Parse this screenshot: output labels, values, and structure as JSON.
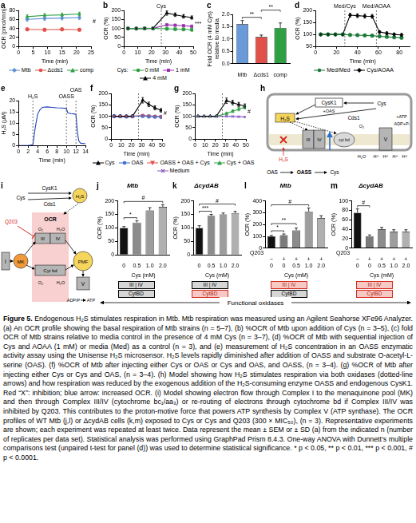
{
  "chart_data": [
    {
      "panel": "a",
      "type": "line",
      "xlabel": "Time (min)",
      "ylabel": "OCR (pmol/min)",
      "grid": false,
      "xlim": [
        0,
        25
      ],
      "xticks": [
        0,
        5,
        10,
        15,
        20,
        25
      ],
      "ylim": [
        0,
        80
      ],
      "yticks": [
        0,
        20,
        40,
        60,
        80
      ],
      "x": [
        3,
        9,
        15,
        21
      ],
      "legend": "bottom",
      "note": "#",
      "series": [
        {
          "name": "Mtb",
          "color": "#5b8fd6",
          "marker": "diamond",
          "values": [
            60,
            62,
            63,
            64
          ],
          "error": [
            4,
            4,
            4,
            4
          ]
        },
        {
          "name": "Δcds1",
          "color": "#e0514a",
          "marker": "circle",
          "values": [
            38,
            37,
            38,
            37
          ],
          "error": [
            3,
            3,
            3,
            3
          ]
        },
        {
          "name": "comp",
          "color": "#2ea043",
          "marker": "triangle",
          "values": [
            66,
            69,
            70,
            72
          ],
          "error": [
            4,
            4,
            4,
            4
          ]
        }
      ]
    },
    {
      "panel": "b",
      "type": "line",
      "xlabel": "Time (min)",
      "ylabel": "OCR (%)",
      "grid": false,
      "xlim": [
        0,
        50
      ],
      "xticks": [
        0,
        10,
        20,
        30,
        40,
        50
      ],
      "ylim": [
        0,
        200
      ],
      "yticks": [
        0,
        50,
        100,
        150,
        200
      ],
      "x": [
        3,
        9,
        15,
        21,
        31,
        37,
        43,
        49
      ],
      "legend": "bottom",
      "legend_title": "Cys:",
      "note": "***",
      "events": [
        {
          "label": "Cys",
          "x": 27
        }
      ],
      "series": [
        {
          "name": "0 mM",
          "color": "#2ea043",
          "marker": "circle",
          "values": [
            100,
            99,
            100,
            100,
            98,
            96,
            95,
            93
          ],
          "error": [
            3,
            3,
            3,
            3,
            3,
            3,
            3,
            3
          ]
        },
        {
          "name": "1 mM",
          "color": "#9b30b0",
          "marker": "square",
          "values": [
            100,
            100,
            101,
            100,
            120,
            118,
            115,
            112
          ],
          "error": [
            3,
            3,
            3,
            3,
            5,
            5,
            5,
            5
          ]
        },
        {
          "name": "4 mM",
          "color": "#000000",
          "marker": "triangle",
          "values": [
            100,
            100,
            100,
            101,
            185,
            176,
            167,
            160
          ],
          "error": [
            3,
            3,
            3,
            3,
            12,
            10,
            10,
            9
          ]
        }
      ]
    },
    {
      "panel": "c",
      "type": "bar",
      "ylabel": [
        "Fold OCR (4 mM Cys)",
        "relative to media"
      ],
      "grid": false,
      "categories": [
        "Mtb",
        "Δcds1",
        "comp"
      ],
      "values": [
        1.6,
        1.08,
        1.45
      ],
      "error": [
        0.15,
        0.08,
        0.2
      ],
      "colors": [
        "#6a9bd8",
        "#e0514a",
        "#2ea043"
      ],
      "ylim": [
        0,
        2
      ],
      "yticks": [
        {
          "value": 0,
          "label": "0.0"
        },
        0.5,
        {
          "value": 1,
          "label": "1.0"
        },
        1.5,
        {
          "value": 2,
          "label": "2.0"
        }
      ],
      "significance": [
        {
          "pair": [
            0,
            1
          ],
          "label": "**"
        },
        {
          "pair": [
            1,
            2
          ],
          "label": "**"
        }
      ]
    },
    {
      "panel": "d",
      "type": "line",
      "xlabel": "Time (min)",
      "ylabel": "OCR (%)",
      "grid": false,
      "xlim": [
        0,
        90
      ],
      "xticks": [
        0,
        20,
        40,
        60,
        80
      ],
      "ylim": [
        50,
        200
      ],
      "yticks": [
        50,
        100,
        150,
        200
      ],
      "x": [
        5,
        12,
        19,
        26,
        33,
        40,
        47,
        54,
        61,
        68,
        75,
        82
      ],
      "legend": "bottom",
      "events": [
        {
          "label": "Med/Cys",
          "x": 28
        },
        {
          "label": "Med/AOAA",
          "x": 58
        }
      ],
      "series": [
        {
          "name": "Med/Med",
          "color": "#1e7b3a",
          "marker": "circle",
          "values": [
            100,
            100,
            100,
            100,
            98,
            97,
            96,
            95,
            92,
            90,
            88,
            86
          ],
          "error": [
            3,
            3,
            3,
            3,
            3,
            3,
            3,
            3,
            3,
            3,
            3,
            3
          ]
        },
        {
          "name": "Cys/AOAA",
          "color": "#000000",
          "marker": "diamond",
          "values": [
            100,
            100,
            100,
            100,
            180,
            178,
            176,
            175,
            110,
            105,
            100,
            98
          ],
          "error": [
            3,
            3,
            3,
            3,
            8,
            8,
            8,
            8,
            6,
            6,
            6,
            6
          ]
        }
      ]
    },
    {
      "panel": "e",
      "type": "line",
      "xlabel": "Time (min)",
      "ylabel": "H₂S (μM)",
      "grid": false,
      "xlim": [
        0,
        14
      ],
      "xticks": [
        0,
        2,
        4,
        6,
        8,
        10,
        12,
        14
      ],
      "ylim": [
        0,
        20
      ],
      "yticks": [
        0,
        5,
        10,
        15,
        20
      ],
      "x": [
        0,
        1,
        2,
        3,
        3.5,
        4,
        4.5,
        5,
        6,
        7,
        8,
        9,
        10,
        10.3,
        11,
        11.8,
        12,
        12.3,
        12.6,
        13,
        14
      ],
      "events": [
        {
          "label": "H₂S",
          "x": 3
        },
        {
          "label": "OASS",
          "x": 10
        },
        {
          "label": "OAS",
          "x": 12
        }
      ],
      "series": [
        {
          "name": "H₂S",
          "color": "#1f3fbf",
          "marker": "none",
          "values": [
            0,
            0,
            0,
            0.3,
            8,
            14,
            16,
            17,
            17.2,
            17,
            16.8,
            16.7,
            16.5,
            14.5,
            14.2,
            14,
            13.8,
            6,
            2,
            1,
            0.8
          ]
        }
      ]
    },
    {
      "panel": "f",
      "type": "line",
      "xlabel": "Time (min)",
      "ylabel": "OCR (%)",
      "grid": false,
      "xlim": [
        0,
        50
      ],
      "xticks": [
        0,
        10,
        20,
        30,
        40,
        50
      ],
      "ylim": [
        0,
        200
      ],
      "yticks": [
        0,
        50,
        100,
        150,
        200
      ],
      "x": [
        3,
        9,
        15,
        21,
        31,
        37,
        43,
        49
      ],
      "legend": "bottom",
      "note": "#",
      "events": [
        {
          "x": 27
        }
      ],
      "series": [
        {
          "name": "Cys",
          "color": "#000000",
          "marker": "triangle",
          "values": [
            100,
            100,
            100,
            100,
            170,
            152,
            137,
            126
          ],
          "error": [
            3,
            3,
            3,
            3,
            12,
            10,
            9,
            8
          ]
        },
        {
          "name": "OAS",
          "color": "#3b6fd6",
          "marker": "circle",
          "values": [
            100,
            100,
            99,
            100,
            101,
            99,
            98,
            97
          ],
          "error": [
            3,
            3,
            3,
            3,
            4,
            4,
            4,
            4
          ]
        },
        {
          "name": "OASS + OAS + Cys",
          "color": "#e0514a",
          "marker": "triangle-down",
          "values": [
            100,
            100,
            100,
            100,
            104,
            102,
            100,
            99
          ],
          "error": [
            3,
            3,
            3,
            3,
            4,
            4,
            4,
            4
          ]
        }
      ]
    },
    {
      "panel": "g",
      "type": "line",
      "xlabel": "Time (min)",
      "ylabel": "OCR (%)",
      "grid": false,
      "xlim": [
        0,
        50
      ],
      "xticks": [
        0,
        10,
        20,
        30,
        40,
        50
      ],
      "ylim": [
        0,
        200
      ],
      "yticks": [
        0,
        50,
        100,
        150,
        200
      ],
      "x": [
        3,
        9,
        15,
        21,
        31,
        37,
        43,
        49
      ],
      "legend": "bottom",
      "note": "#",
      "events": [
        {
          "x": 27
        }
      ],
      "series": [
        {
          "name": "Cys",
          "color": "#000000",
          "marker": "triangle",
          "values": [
            100,
            100,
            100,
            100,
            168,
            160,
            151,
            145
          ],
          "error": [
            3,
            3,
            3,
            3,
            12,
            10,
            10,
            9
          ]
        },
        {
          "name": "Cys + OAS",
          "color": "#2ea043",
          "marker": "triangle",
          "values": [
            100,
            100,
            100,
            100,
            112,
            122,
            131,
            140
          ],
          "error": [
            3,
            3,
            3,
            3,
            5,
            6,
            7,
            8
          ]
        },
        {
          "name": "Medium",
          "color": "#8a5cc2",
          "marker": "cross",
          "values": [
            100,
            100,
            100,
            100,
            100,
            99,
            98,
            97
          ],
          "error": [
            3,
            3,
            3,
            3,
            3,
            3,
            3,
            3
          ]
        }
      ]
    },
    {
      "panel": "j",
      "type": "bar",
      "title": "Mtb",
      "xlabel": "Cys (mM)",
      "ylabel": "OCR (%)",
      "grid": false,
      "categories": [
        "0",
        "0.5",
        "1.0",
        "2.0"
      ],
      "values": [
        100,
        120,
        165,
        178
      ],
      "error": [
        5,
        6,
        10,
        8
      ],
      "colors": [
        "#111111",
        "#8c8c8c",
        "#9d9d9d",
        "#b0b0b0"
      ],
      "ylim": [
        0,
        200
      ],
      "yticks": [
        0,
        50,
        100,
        150,
        200
      ],
      "significance": [
        {
          "pair": [
            0,
            1
          ],
          "label": "*"
        },
        {
          "pair": [
            0,
            3
          ],
          "label": "#"
        }
      ],
      "oxidases": [
        {
          "label": "III | IV",
          "functional": true
        },
        {
          "label": "CytBD",
          "functional": true
        }
      ]
    },
    {
      "panel": "k",
      "type": "bar",
      "title": "ΔcydAB",
      "xlabel": "Cys (mM)",
      "ylabel": "OCR (%)",
      "grid": false,
      "categories": [
        "0",
        "0.5",
        "1.0",
        "2.0"
      ],
      "values": [
        100,
        145,
        150,
        155
      ],
      "error": [
        8,
        5,
        5,
        6
      ],
      "colors": [
        "#111111",
        "#8c8c8c",
        "#9d9d9d",
        "#b0b0b0"
      ],
      "ylim": [
        0,
        200
      ],
      "yticks": [
        0,
        50,
        100,
        150,
        200
      ],
      "significance": [
        {
          "pair": [
            0,
            1
          ],
          "label": "***"
        },
        {
          "pair": [
            0,
            3
          ],
          "label": "#"
        }
      ],
      "oxidases": [
        {
          "label": "III | IV",
          "functional": true
        },
        {
          "label": "CytBD",
          "functional": false
        }
      ]
    },
    {
      "panel": "l",
      "type": "bar",
      "title": "Mtb",
      "xlabel": "Cys (mM)",
      "ylabel": "OCR (%)",
      "grid": false,
      "q203": {
        "label": "Q203",
        "values": [
          "−",
          "+",
          "+",
          "+",
          "+"
        ]
      },
      "categories": [
        "0",
        "0",
        "0.5",
        "1.0",
        "2.0"
      ],
      "values": [
        100,
        110,
        150,
        310,
        255
      ],
      "error": [
        8,
        10,
        20,
        30,
        20
      ],
      "colors": [
        "#111111",
        "#7a7a7a",
        "#8c8c8c",
        "#9d9d9d",
        "#b0b0b0"
      ],
      "ylim": [
        0,
        400
      ],
      "yticks": [
        0,
        100,
        200,
        300,
        400
      ],
      "significance": [
        {
          "pair": [
            0,
            1
          ],
          "label": "*"
        },
        {
          "pair": [
            0,
            2
          ],
          "label": "**"
        },
        {
          "pair": [
            0,
            3
          ],
          "label": "#"
        }
      ],
      "oxidases": [
        {
          "label": "III | IV",
          "functional": false
        },
        {
          "label": "CytBD",
          "functional": true
        }
      ]
    },
    {
      "panel": "m",
      "type": "bar",
      "title": "ΔcydAB",
      "xlabel": "Cys (mM)",
      "ylabel": "OCR (%)",
      "grid": false,
      "q203": {
        "label": "Q203",
        "values": [
          "−",
          "+",
          "+",
          "+",
          "+"
        ]
      },
      "categories": [
        "0",
        "0",
        "0.5",
        "1.0",
        "2.0"
      ],
      "values": [
        75,
        25,
        40,
        35,
        35
      ],
      "error": [
        8,
        3,
        4,
        4,
        4
      ],
      "colors": [
        "#111111",
        "#7a7a7a",
        "#8c8c8c",
        "#9d9d9d",
        "#b0b0b0"
      ],
      "ylim": [
        0,
        100
      ],
      "yticks": [
        0,
        20,
        40,
        60,
        80,
        100
      ],
      "significance": [
        {
          "pair": [
            0,
            1
          ],
          "label": "#"
        }
      ],
      "oxidases": [
        {
          "label": "III | IV",
          "functional": false
        },
        {
          "label": "CytBD",
          "functional": false
        }
      ]
    }
  ],
  "diagrams": [
    {
      "panel": "h",
      "labels": {
        "cysk1": "CysK1",
        "oas_plus": "+OAS",
        "h2s_in": "H₂S",
        "cds1": "Cds1",
        "cys_in": "Cys",
        "c3": "III",
        "c4": "IV",
        "bd": "cyt bd",
        "c5": "V",
        "atp": "+ATP",
        "adp": "ADP+Pᵢ",
        "proton": "H⁺",
        "o2": "O₂",
        "h2o": "H₂O",
        "h2s_out": "H₂S",
        "oas_out": "OAS",
        "oass": "OASS",
        "cys_out": "Cys"
      }
    },
    {
      "panel": "i",
      "labels": {
        "cysk1": "CysK1",
        "cds1": "Cds1",
        "h2s": "H₂S",
        "cys": "Cys",
        "q203": "Q203",
        "ocr": "OCR",
        "c1": "I",
        "mk": "MK",
        "c3": "III",
        "c4": "IV",
        "bd": "Cyt bd",
        "o2": "O₂",
        "h2o": "H₂O",
        "pmf": "PMF",
        "c5": "V",
        "adp": "ADP/P",
        "atp": "ATP"
      }
    }
  ],
  "functional_oxidases": "Functional oxidases",
  "caption": {
    "label": "Figure 5.",
    "text": "Endogenous H₂S stimulates respiration in Mtb. Mtb respiration was measured using an Agilent Seahorse XFe96 Analyzer. (a) An OCR profile showing the basal respiration of Mtb strains (n = 5–7), (b) %OCR of Mtb upon addition of Cys (n = 3–5), (c) fold OCR of Mtb strains relative to media control in the presence of 4 mM Cys (n = 3–7), (d) %OCR of Mtb with sequential injection of Cys and AOAA (1 mM) or media (Med) as a control (n = 3), and (e) measurement of H₂S concentration in an OASS enzymatic activity assay using the Unisense H₂S microsensor. H₂S levels rapidly diminished after addition of OASS and substrate O-acetyl-L-serine (OAS). (f) %OCR of Mtb after injecting either Cys or OAS or Cys and OAS, and OASS, (n = 3–4). (g) %OCR of Mtb after injecting either Cys or Cys and OAS, (n = 3–4). (h) Model showing how H₂S stimulates respiration via both oxidases (dotted-line arrows) and how respiration was reduced by the exogenous addition of the H₂S-consuming enzyme OASS and endogenous CysK1. Red “X”: inhibition; blue arrow: increased OCR. (i) Model showing electron flow through Complex I to the menaquinone pool (MK) and then through Complex III/IV (cytochrome bc₁/aa₃) or re-routing of electrons through cytochrome bd if Complex III/IV was inhibited by Q203. This contributes to the proton-motive force that powers ATP synthesis by Complex V (ATP synthase). The OCR profiles of WT Mtb (j,l) or ΔcydAB cells (k,m) exposed to Cys or Cys and Q203 (300 × MIC₅₀), (n = 3). Representative experiments are shown; each experiment was repeated at least twice. Data represent the mean ± SEM or ± SD (a) from the indicated n (number of replicates per data set). Statistical analysis was performed using GraphPad Prism 8.4.3. One-way ANOVA with Dunnett’s multiple comparisons test (unpaired t-test for panel (d)) was used to determine statistical significance. * p < 0.05, ** p < 0.01, *** p < 0.001, # p < 0.0001."
  }
}
